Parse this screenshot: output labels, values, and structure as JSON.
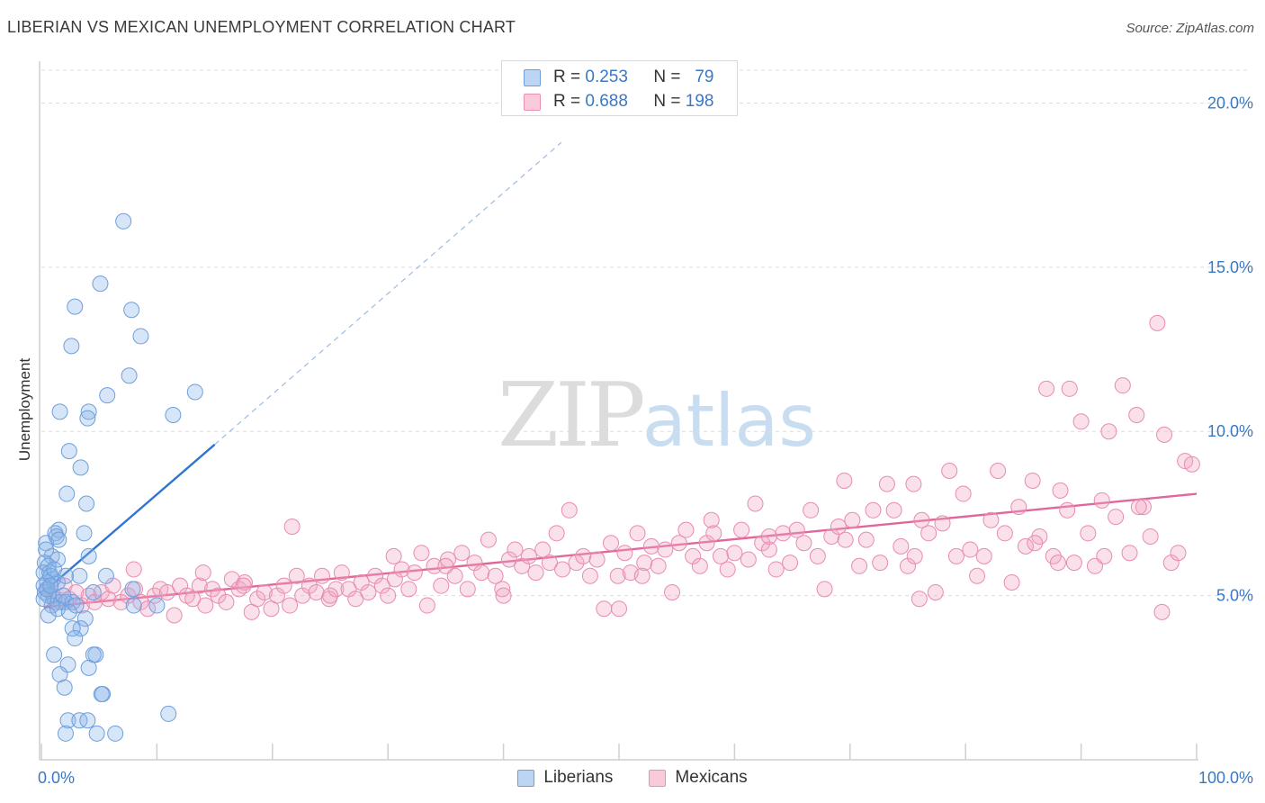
{
  "header": {
    "title": "LIBERIAN VS MEXICAN UNEMPLOYMENT CORRELATION CHART",
    "source": "Source: ZipAtlas.com"
  },
  "watermark": {
    "zip": "ZIP",
    "atlas": "atlas"
  },
  "colors": {
    "liberian": "#8ab4e8",
    "liberian_line": "#2f74cf",
    "mexican": "#f2a7c3",
    "mexican_line": "#e0679a",
    "axis_text": "#3b78c4",
    "grid": "#dddddd"
  },
  "legend_top": [
    {
      "r_label": "R =",
      "r_value": "0.253",
      "n_label": "N =",
      "n_value": "79"
    },
    {
      "r_label": "R =",
      "r_value": "0.688",
      "n_label": "N =",
      "n_value": "198"
    }
  ],
  "legend_bottom": [
    "Liberians",
    "Mexicans"
  ],
  "chart_data": {
    "type": "scatter",
    "title": "LIBERIAN VS MEXICAN UNEMPLOYMENT CORRELATION CHART",
    "xlabel": "",
    "ylabel": "Unemployment",
    "xlim": [
      0,
      100
    ],
    "ylim": [
      0,
      21
    ],
    "x_tick_labels": [
      {
        "value": 0,
        "label": "0.0%"
      },
      {
        "value": 100,
        "label": "100.0%"
      }
    ],
    "y_tick_labels": [
      {
        "value": 5,
        "label": "5.0%"
      },
      {
        "value": 10,
        "label": "10.0%"
      },
      {
        "value": 15,
        "label": "15.0%"
      },
      {
        "value": 20,
        "label": "20.0%"
      }
    ],
    "grid": "horizontal dashed",
    "legend": "top-center and bottom",
    "series": [
      {
        "name": "Liberians",
        "r": 0.253,
        "n": 79,
        "trend": {
          "x0": 0.5,
          "y0": 5.2,
          "x1": 15.0,
          "y1": 9.6,
          "dashed_extension_to": [
            45.0,
            18.8
          ]
        },
        "points": [
          [
            7.1,
            16.4
          ],
          [
            5.1,
            14.5
          ],
          [
            2.9,
            13.8
          ],
          [
            7.8,
            13.7
          ],
          [
            2.6,
            12.6
          ],
          [
            8.6,
            12.9
          ],
          [
            7.6,
            11.7
          ],
          [
            5.7,
            11.1
          ],
          [
            13.3,
            11.2
          ],
          [
            1.6,
            10.6
          ],
          [
            4.1,
            10.6
          ],
          [
            4.0,
            10.4
          ],
          [
            11.4,
            10.5
          ],
          [
            2.4,
            9.4
          ],
          [
            3.4,
            8.9
          ],
          [
            2.2,
            8.1
          ],
          [
            3.9,
            7.8
          ],
          [
            1.5,
            7.0
          ],
          [
            1.2,
            6.9
          ],
          [
            3.7,
            6.9
          ],
          [
            0.4,
            6.6
          ],
          [
            1.3,
            6.8
          ],
          [
            0.9,
            6.2
          ],
          [
            4.1,
            6.2
          ],
          [
            1.4,
            6.1
          ],
          [
            0.3,
            6.0
          ],
          [
            0.6,
            5.9
          ],
          [
            0.2,
            5.7
          ],
          [
            0.7,
            5.7
          ],
          [
            1.0,
            5.5
          ],
          [
            0.5,
            5.4
          ],
          [
            0.2,
            5.3
          ],
          [
            1.4,
            5.4
          ],
          [
            0.8,
            5.6
          ],
          [
            1.1,
            5.8
          ],
          [
            3.3,
            5.6
          ],
          [
            5.6,
            5.6
          ],
          [
            0.3,
            5.1
          ],
          [
            0.6,
            5.0
          ],
          [
            1.1,
            4.9
          ],
          [
            1.7,
            4.8
          ],
          [
            2.1,
            4.8
          ],
          [
            2.7,
            4.8
          ],
          [
            0.9,
            4.7
          ],
          [
            1.4,
            4.6
          ],
          [
            2.4,
            4.5
          ],
          [
            3.0,
            4.7
          ],
          [
            4.5,
            5.1
          ],
          [
            7.9,
            5.2
          ],
          [
            8.0,
            4.7
          ],
          [
            10.0,
            4.7
          ],
          [
            0.6,
            4.4
          ],
          [
            3.8,
            4.3
          ],
          [
            3.4,
            4.0
          ],
          [
            2.7,
            4.0
          ],
          [
            2.9,
            3.7
          ],
          [
            4.7,
            3.2
          ],
          [
            1.1,
            3.2
          ],
          [
            4.5,
            3.2
          ],
          [
            2.3,
            2.9
          ],
          [
            1.6,
            2.6
          ],
          [
            4.1,
            2.8
          ],
          [
            2.0,
            2.2
          ],
          [
            5.3,
            2.0
          ],
          [
            5.2,
            2.0
          ],
          [
            11.0,
            1.4
          ],
          [
            2.3,
            1.2
          ],
          [
            3.3,
            1.2
          ],
          [
            4.0,
            1.2
          ],
          [
            2.1,
            0.8
          ],
          [
            4.8,
            0.8
          ],
          [
            6.4,
            0.8
          ],
          [
            0.2,
            4.9
          ],
          [
            0.5,
            5.2
          ],
          [
            1.9,
            5.0
          ],
          [
            0.4,
            6.4
          ],
          [
            0.8,
            5.3
          ],
          [
            1.5,
            6.7
          ],
          [
            2.1,
            5.6
          ]
        ]
      },
      {
        "name": "Mexicans",
        "r": 0.688,
        "n": 198,
        "trend": {
          "x0": 0.2,
          "y0": 4.65,
          "x1": 100.0,
          "y1": 8.1
        },
        "points": [
          [
            0.5,
            5.2
          ],
          [
            1.0,
            5.0
          ],
          [
            1.4,
            4.8
          ],
          [
            2.0,
            5.3
          ],
          [
            2.4,
            4.9
          ],
          [
            3.0,
            5.1
          ],
          [
            3.5,
            4.7
          ],
          [
            4.1,
            5.0
          ],
          [
            4.6,
            4.8
          ],
          [
            5.2,
            5.1
          ],
          [
            5.8,
            4.9
          ],
          [
            6.2,
            5.3
          ],
          [
            6.9,
            4.8
          ],
          [
            7.5,
            5.0
          ],
          [
            8.1,
            5.2
          ],
          [
            8.6,
            4.8
          ],
          [
            9.2,
            4.6
          ],
          [
            9.8,
            5.0
          ],
          [
            10.3,
            5.2
          ],
          [
            10.9,
            5.1
          ],
          [
            11.5,
            4.4
          ],
          [
            12.0,
            5.3
          ],
          [
            12.6,
            5.0
          ],
          [
            13.1,
            4.9
          ],
          [
            13.7,
            5.3
          ],
          [
            14.2,
            4.7
          ],
          [
            14.8,
            5.2
          ],
          [
            15.3,
            5.0
          ],
          [
            16.0,
            4.8
          ],
          [
            16.5,
            5.5
          ],
          [
            17.1,
            5.2
          ],
          [
            17.6,
            5.4
          ],
          [
            18.2,
            4.5
          ],
          [
            18.7,
            4.9
          ],
          [
            19.3,
            5.1
          ],
          [
            19.9,
            4.6
          ],
          [
            20.4,
            5.0
          ],
          [
            21.0,
            5.3
          ],
          [
            21.5,
            4.7
          ],
          [
            22.1,
            5.6
          ],
          [
            22.6,
            5.0
          ],
          [
            23.2,
            5.3
          ],
          [
            23.8,
            5.1
          ],
          [
            24.3,
            5.6
          ],
          [
            24.9,
            4.9
          ],
          [
            25.5,
            5.2
          ],
          [
            26.0,
            5.7
          ],
          [
            26.6,
            5.2
          ],
          [
            27.2,
            4.9
          ],
          [
            27.7,
            5.4
          ],
          [
            28.3,
            5.1
          ],
          [
            28.9,
            5.6
          ],
          [
            29.5,
            5.3
          ],
          [
            30.0,
            5.0
          ],
          [
            30.6,
            5.5
          ],
          [
            31.2,
            5.8
          ],
          [
            31.8,
            5.2
          ],
          [
            32.3,
            5.7
          ],
          [
            32.9,
            6.3
          ],
          [
            33.4,
            4.7
          ],
          [
            34.0,
            5.9
          ],
          [
            34.6,
            5.3
          ],
          [
            35.2,
            6.1
          ],
          [
            35.8,
            5.6
          ],
          [
            36.4,
            6.3
          ],
          [
            36.9,
            5.2
          ],
          [
            37.5,
            6.0
          ],
          [
            38.1,
            5.7
          ],
          [
            38.7,
            6.7
          ],
          [
            39.3,
            5.6
          ],
          [
            39.9,
            5.2
          ],
          [
            40.5,
            6.1
          ],
          [
            41.0,
            6.4
          ],
          [
            41.6,
            5.9
          ],
          [
            42.2,
            6.2
          ],
          [
            42.8,
            5.7
          ],
          [
            43.4,
            6.4
          ],
          [
            44.0,
            6.0
          ],
          [
            44.6,
            6.9
          ],
          [
            45.1,
            5.8
          ],
          [
            45.7,
            7.6
          ],
          [
            46.3,
            6.0
          ],
          [
            46.9,
            6.2
          ],
          [
            47.5,
            5.6
          ],
          [
            48.1,
            6.1
          ],
          [
            48.7,
            4.6
          ],
          [
            49.3,
            6.6
          ],
          [
            49.9,
            5.6
          ],
          [
            50.5,
            6.3
          ],
          [
            51.0,
            5.7
          ],
          [
            51.6,
            6.9
          ],
          [
            52.2,
            6.0
          ],
          [
            52.8,
            6.5
          ],
          [
            53.4,
            5.9
          ],
          [
            54.0,
            6.4
          ],
          [
            54.6,
            5.1
          ],
          [
            55.2,
            6.6
          ],
          [
            55.8,
            7.0
          ],
          [
            56.4,
            6.2
          ],
          [
            57.0,
            5.9
          ],
          [
            57.6,
            6.6
          ],
          [
            58.2,
            6.9
          ],
          [
            58.8,
            6.2
          ],
          [
            59.4,
            5.8
          ],
          [
            60.0,
            6.3
          ],
          [
            60.6,
            7.0
          ],
          [
            61.2,
            6.1
          ],
          [
            61.8,
            7.8
          ],
          [
            62.4,
            6.6
          ],
          [
            63.0,
            6.4
          ],
          [
            63.6,
            5.8
          ],
          [
            64.2,
            6.9
          ],
          [
            64.8,
            6.0
          ],
          [
            65.4,
            7.0
          ],
          [
            66.0,
            6.6
          ],
          [
            66.6,
            7.6
          ],
          [
            67.2,
            6.2
          ],
          [
            67.8,
            5.2
          ],
          [
            68.4,
            6.8
          ],
          [
            69.0,
            7.1
          ],
          [
            69.6,
            6.7
          ],
          [
            70.2,
            7.3
          ],
          [
            70.8,
            5.9
          ],
          [
            71.4,
            6.7
          ],
          [
            72.0,
            7.6
          ],
          [
            72.6,
            6.0
          ],
          [
            73.2,
            8.4
          ],
          [
            73.8,
            7.6
          ],
          [
            74.4,
            6.5
          ],
          [
            75.0,
            5.9
          ],
          [
            75.6,
            6.2
          ],
          [
            76.2,
            7.3
          ],
          [
            76.8,
            6.9
          ],
          [
            77.4,
            5.1
          ],
          [
            78.0,
            7.2
          ],
          [
            78.6,
            8.8
          ],
          [
            79.2,
            6.2
          ],
          [
            79.8,
            8.1
          ],
          [
            80.4,
            6.4
          ],
          [
            81.0,
            5.6
          ],
          [
            81.6,
            6.2
          ],
          [
            82.2,
            7.3
          ],
          [
            82.8,
            8.8
          ],
          [
            83.4,
            6.9
          ],
          [
            84.0,
            5.4
          ],
          [
            84.6,
            7.7
          ],
          [
            85.2,
            6.5
          ],
          [
            85.8,
            8.5
          ],
          [
            86.4,
            6.8
          ],
          [
            87.0,
            11.3
          ],
          [
            87.6,
            6.2
          ],
          [
            88.2,
            8.2
          ],
          [
            88.8,
            7.6
          ],
          [
            89.4,
            6.0
          ],
          [
            90.0,
            10.3
          ],
          [
            90.6,
            6.9
          ],
          [
            91.2,
            5.9
          ],
          [
            91.8,
            7.9
          ],
          [
            92.4,
            10.0
          ],
          [
            93.0,
            7.4
          ],
          [
            93.6,
            11.4
          ],
          [
            94.2,
            6.3
          ],
          [
            94.8,
            10.5
          ],
          [
            95.4,
            7.7
          ],
          [
            96.0,
            6.8
          ],
          [
            96.6,
            13.3
          ],
          [
            97.2,
            9.9
          ],
          [
            97.8,
            6.0
          ],
          [
            98.4,
            6.3
          ],
          [
            99.0,
            9.1
          ],
          [
            99.6,
            9.0
          ],
          [
            97.0,
            4.5
          ],
          [
            76.0,
            4.9
          ],
          [
            50.0,
            4.6
          ],
          [
            89.0,
            11.3
          ],
          [
            86.0,
            6.6
          ],
          [
            69.5,
            8.5
          ],
          [
            58.0,
            7.3
          ],
          [
            21.7,
            7.1
          ],
          [
            30.5,
            6.2
          ],
          [
            14.0,
            5.7
          ],
          [
            25.0,
            5.0
          ],
          [
            40.0,
            5.0
          ],
          [
            52.0,
            5.6
          ],
          [
            63.0,
            6.8
          ],
          [
            75.5,
            8.4
          ],
          [
            88.0,
            6.0
          ],
          [
            92.0,
            6.2
          ],
          [
            95.0,
            7.7
          ],
          [
            8.0,
            5.8
          ],
          [
            17.5,
            5.3
          ],
          [
            35.0,
            5.9
          ]
        ]
      }
    ]
  }
}
